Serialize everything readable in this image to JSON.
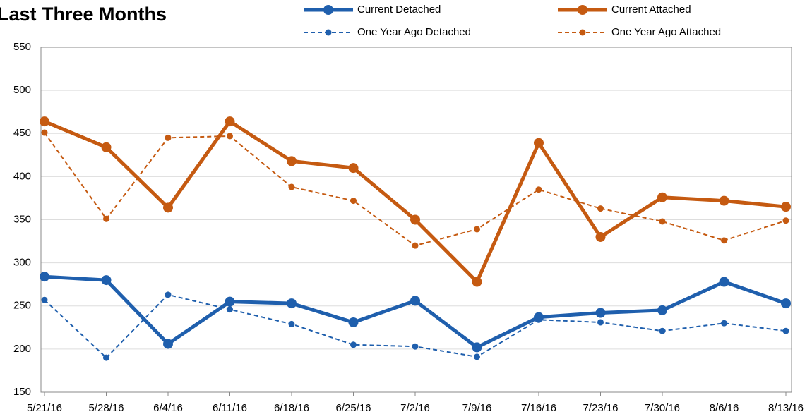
{
  "chart_data": {
    "type": "line",
    "title": "Last Three Months",
    "categories": [
      "5/21/16",
      "5/28/16",
      "6/4/16",
      "6/11/16",
      "6/18/16",
      "6/25/16",
      "7/2/16",
      "7/9/16",
      "7/16/16",
      "7/23/16",
      "7/30/16",
      "8/6/16",
      "8/13/16"
    ],
    "series": [
      {
        "name": "Current Detached",
        "color": "#1f5fad",
        "dashed": false,
        "values": [
          284,
          280,
          206,
          255,
          253,
          231,
          256,
          202,
          237,
          242,
          245,
          278,
          253
        ]
      },
      {
        "name": "Current Attached",
        "color": "#c55a11",
        "dashed": false,
        "values": [
          464,
          434,
          364,
          464,
          418,
          410,
          350,
          278,
          439,
          330,
          376,
          372,
          365
        ]
      },
      {
        "name": "One Year Ago Detached",
        "color": "#1f5fad",
        "dashed": true,
        "values": [
          257,
          190,
          263,
          246,
          229,
          205,
          203,
          191,
          234,
          231,
          221,
          230,
          221
        ]
      },
      {
        "name": "One Year Ago Attached",
        "color": "#c55a11",
        "dashed": true,
        "values": [
          451,
          351,
          445,
          447,
          388,
          372,
          320,
          339,
          385,
          363,
          348,
          326,
          349
        ]
      }
    ],
    "ylim": [
      150,
      550
    ],
    "yticks": [
      150,
      200,
      250,
      300,
      350,
      400,
      450,
      500,
      550
    ],
    "grid": true
  }
}
